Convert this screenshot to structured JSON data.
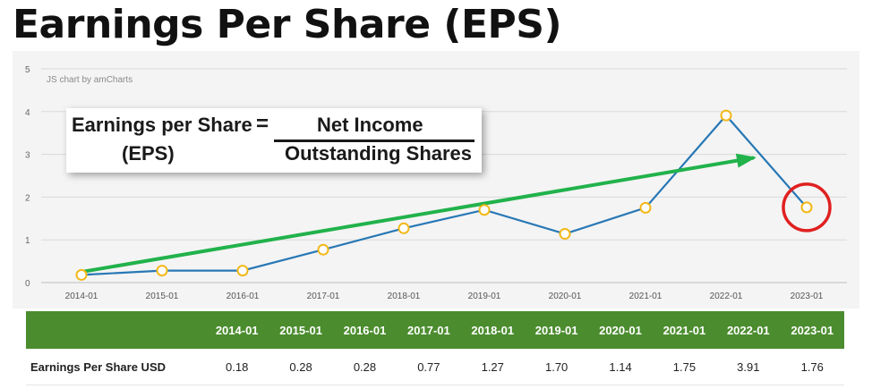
{
  "title": "Earnings Per Share (EPS)",
  "chart_data": {
    "type": "line",
    "credit": "JS chart by amCharts",
    "categories": [
      "2014-01",
      "2015-01",
      "2016-01",
      "2017-01",
      "2018-01",
      "2019-01",
      "2020-01",
      "2021-01",
      "2022-01",
      "2023-01"
    ],
    "series": [
      {
        "values": [
          0.18,
          0.28,
          0.28,
          0.77,
          1.27,
          1.7,
          1.14,
          1.75,
          3.91,
          1.76
        ]
      }
    ],
    "yticks": [
      "0",
      "1",
      "2",
      "3",
      "4",
      "5"
    ],
    "ylim": [
      0,
      5
    ],
    "grid": true,
    "annotations": {
      "trend_arrow": {
        "from": [
          "2014-01",
          0.25
        ],
        "to": [
          "2023-01",
          3.0
        ]
      },
      "highlight_circle": "2023-01"
    },
    "colors": {
      "line": "#2878b5",
      "marker_stroke": "#f2b818",
      "marker_fill": "#ffffff",
      "arrow": "#21b24b",
      "circle": "#e02020",
      "grid": "#d9d9d9",
      "panel": "#f4f4f4"
    }
  },
  "formula": {
    "left_line1": "Earnings per Share",
    "left_line2": "(EPS)",
    "equals": "=",
    "numerator": "Net Income",
    "denominator": "Outstanding Shares"
  },
  "table": {
    "corner": "",
    "headers": [
      "2014-01",
      "2015-01",
      "2016-01",
      "2017-01",
      "2018-01",
      "2019-01",
      "2020-01",
      "2021-01",
      "2022-01",
      "2023-01"
    ],
    "row_label": "Earnings Per Share USD",
    "values": [
      "0.18",
      "0.28",
      "0.28",
      "0.77",
      "1.27",
      "1.70",
      "1.14",
      "1.75",
      "3.91",
      "1.76"
    ],
    "header_color": "#4b8c2e"
  }
}
